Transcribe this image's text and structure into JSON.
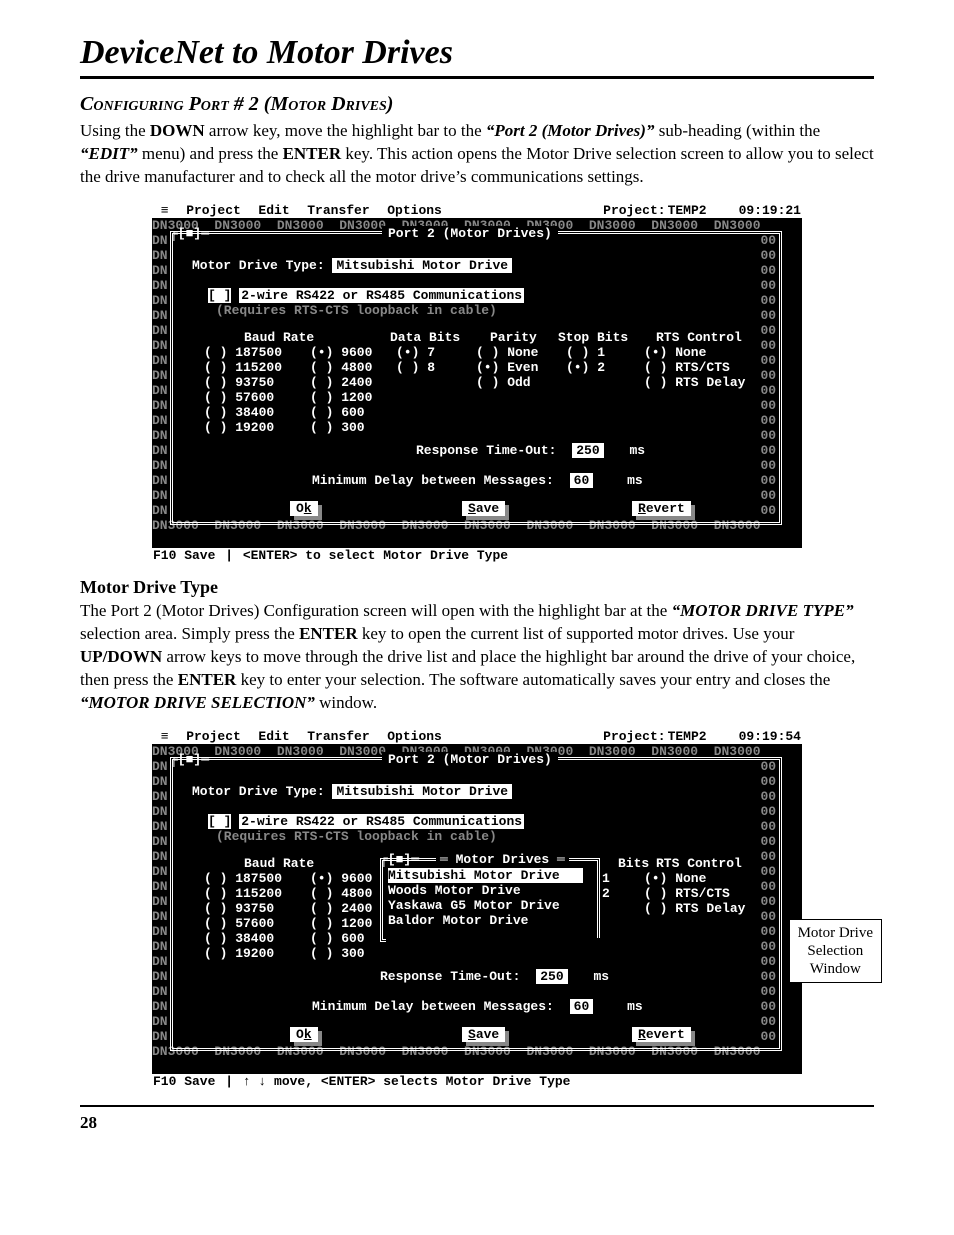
{
  "doc": {
    "title": "DeviceNet to Motor Drives",
    "section_heading": "Configuring Port # 2 (Motor Drives)",
    "intro_html": "Using the <b>DOWN</b> arrow key, move the highlight bar to the <i class=\"b\">“Port 2 (Motor Drives)”</i> sub-heading (within the <i class=\"b\">“EDIT”</i> menu) and press the <b>ENTER</b> key.  This action opens the Motor Drive selection screen to allow you to select the drive manufacturer and to check all the motor drive’s communications settings.",
    "sub_heading": "Motor Drive Type",
    "mdt_html": "The Port 2 (Motor Drives) Configuration screen will open with the highlight bar at the <i class=\"b\">“MOTOR DRIVE TYPE”</i> selection area.  Simply press the <b>ENTER</b> key to open the current list of supported motor drives.  Use your <b>UP/DOWN</b> arrow keys to move through the drive list and place the highlight bar around the drive of your choice, then press the <b>ENTER</b> key to enter your selection.  The software automatically saves your entry and closes the <i class=\"b\">“MOTOR DRIVE SELECTION”</i> window.",
    "page_num": "28"
  },
  "term_common": {
    "menubar": {
      "items": [
        "Project",
        "Edit",
        "Transfer",
        "Options"
      ],
      "project_label": "Project:",
      "project_name": "TEMP2"
    },
    "bg_word": "DN3000",
    "window_title": "Port 2 (Motor Drives)",
    "drive_type_label": "Motor Drive Type:",
    "drive_type_value": "Mitsubishi Motor Drive",
    "checkbox_label": "2-wire RS422 or RS485 Communications",
    "checkbox_note": "(Requires RTS-CTS loopback in cable)",
    "cols": {
      "baud": "Baud Rate",
      "databits": "Data Bits",
      "parity": "Parity",
      "stopbits": "Stop Bits",
      "rts": "RTS Control"
    },
    "baud_left": [
      "187500",
      "115200",
      "93750",
      "57600",
      "38400",
      "19200"
    ],
    "baud_right": [
      "9600",
      "4800",
      "2400",
      "1200",
      "600",
      "300"
    ],
    "baud_selected": "9600",
    "databits": [
      "7",
      "8"
    ],
    "databits_selected": "7",
    "parity": [
      "None",
      "Even",
      "Odd"
    ],
    "parity_selected": "Even",
    "stopbits": [
      "1",
      "2"
    ],
    "stopbits_selected": "2",
    "rts": [
      "None",
      "RTS/CTS",
      "RTS Delay"
    ],
    "rts_selected": "None",
    "response_timeout": {
      "label": "Response Time-Out:",
      "value": "250",
      "unit": "ms"
    },
    "min_delay": {
      "label": "Minimum Delay between Messages:",
      "value": "60",
      "unit": "ms"
    },
    "buttons": {
      "ok": "Ok",
      "save": "Save",
      "revert": "Revert"
    },
    "statusbar_left": "F10 Save"
  },
  "term1": {
    "time": "09:19:21",
    "statusbar_right": "<ENTER> to select Motor Drive Type"
  },
  "term2": {
    "time": "09:19:54",
    "popup_title": "Motor Drives",
    "popup_items": [
      "Mitsubishi Motor Drive",
      "Woods Motor Drive",
      "Yaskawa G5 Motor Drive",
      "Baldor Motor Drive"
    ],
    "popup_selected": "Mitsubishi Motor Drive",
    "popup_stopbits_partial": [
      "1",
      "2"
    ],
    "statusbar_right": "↑ ↓ move, <ENTER> selects Motor Drive Type",
    "callout": "Motor Drive\nSelection\nWindow"
  },
  "colors": {
    "term_bg": "#000000",
    "term_fg": "#ffffff",
    "term_dim": "#888888",
    "page_bg": "#ffffff",
    "text": "#000000"
  }
}
